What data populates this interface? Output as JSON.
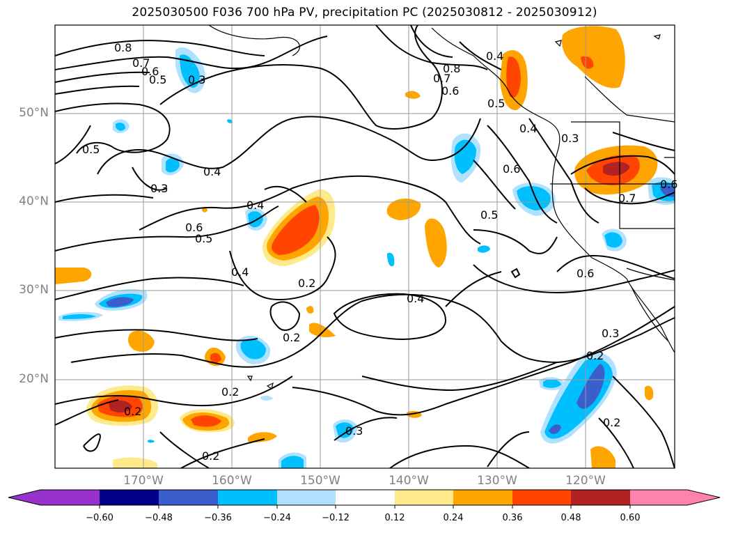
{
  "title": "2025030500 F036 700 hPa PV, precipitation PC (2025030812 - 2025030912)",
  "lat_labels": [
    "50°N",
    "40°N",
    "30°N",
    "20°N"
  ],
  "lon_labels": [
    "170°W",
    "160°W",
    "150°W",
    "140°W",
    "130°W",
    "120°W"
  ],
  "colorbar": {
    "colors": [
      "#9932cc",
      "#00008b",
      "#3a5fcd",
      "#00bfff",
      "#b0e2ff",
      "#ffffff",
      "#fee98b",
      "#ffa500",
      "#ff4500",
      "#b22222",
      "#ff82ab"
    ],
    "tick_labels": [
      "−0.60",
      "−0.48",
      "−0.36",
      "−0.24",
      "−0.12",
      "0.12",
      "0.24",
      "0.36",
      "0.48",
      "0.60"
    ]
  },
  "contour_labels": [
    "0.8",
    "0.7",
    "0.6",
    "0.5",
    "0.3",
    "0.5",
    "0.3",
    "0.4",
    "0.4",
    "0.6",
    "0.5",
    "0.4",
    "0.2",
    "0.2",
    "0.4",
    "0.2",
    "0.2",
    "0.2",
    "0.8",
    "0.7",
    "0.6",
    "0.4",
    "0.5",
    "0.4",
    "0.3",
    "0.6",
    "0.5",
    "0.6",
    "0.7",
    "0.6",
    "0.3",
    "0.2",
    "0.2",
    "0.3"
  ]
}
